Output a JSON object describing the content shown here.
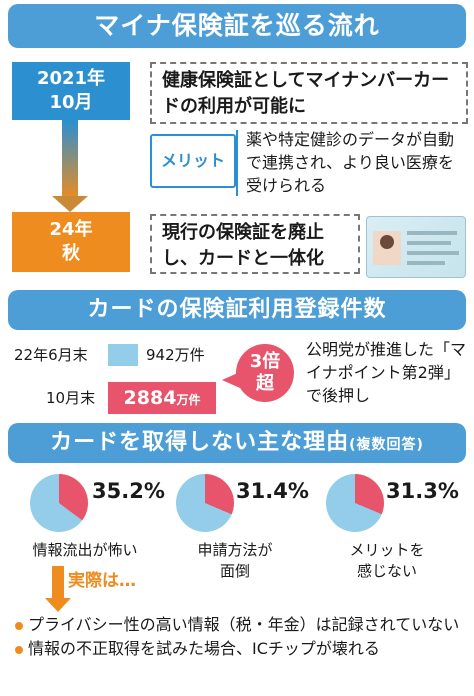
{
  "headers": {
    "flow": "マイナ保険証を巡る流れ",
    "registrations": "カードの保険証利用登録件数",
    "reasons": "カードを取得しない主な理由",
    "reasons_note": "(複数回答)"
  },
  "timeline": {
    "date1_line1": "2021年",
    "date1_line2": "10月",
    "event1": "健康保険証としてマイナンバーカードの利用が可能に",
    "merit_label": "メリット",
    "merit_text": "薬や特定健診のデータが自動で連携され、より良い医療を受けられる",
    "date2_line1": "24年",
    "date2_line2": "秋",
    "event2": "現行の保険証を廃止し、カードと一体化"
  },
  "registrations": {
    "row1_label": "22年6月末",
    "row1_value": "942万件",
    "row2_label": "10月末",
    "row2_number": "2884",
    "row2_unit": "万件",
    "badge_line1": "3倍",
    "badge_line2": "超",
    "note": "公明党が推進した「マイナポイント第2弾」で後押し"
  },
  "reasons": [
    {
      "percent": "35.2%",
      "line1": "情報流出が怖い",
      "line2": "",
      "value": 35.2
    },
    {
      "percent": "31.4%",
      "line1": "申請方法が",
      "line2": "面倒",
      "value": 31.4
    },
    {
      "percent": "31.3%",
      "line1": "メリットを",
      "line2": "感じない",
      "value": 31.3
    }
  ],
  "actually": "実際は…",
  "facts": [
    "プライバシー性の高い情報（税・年金）は記録されていない",
    "情報の不正取得を試みた場合、ICチップが壊れる"
  ],
  "colors": {
    "header_blue": "#4d9ed6",
    "date_blue": "#2b8fd0",
    "date_orange": "#ef8c1f",
    "accent_red": "#e8546b",
    "light_blue": "#93cde9"
  }
}
